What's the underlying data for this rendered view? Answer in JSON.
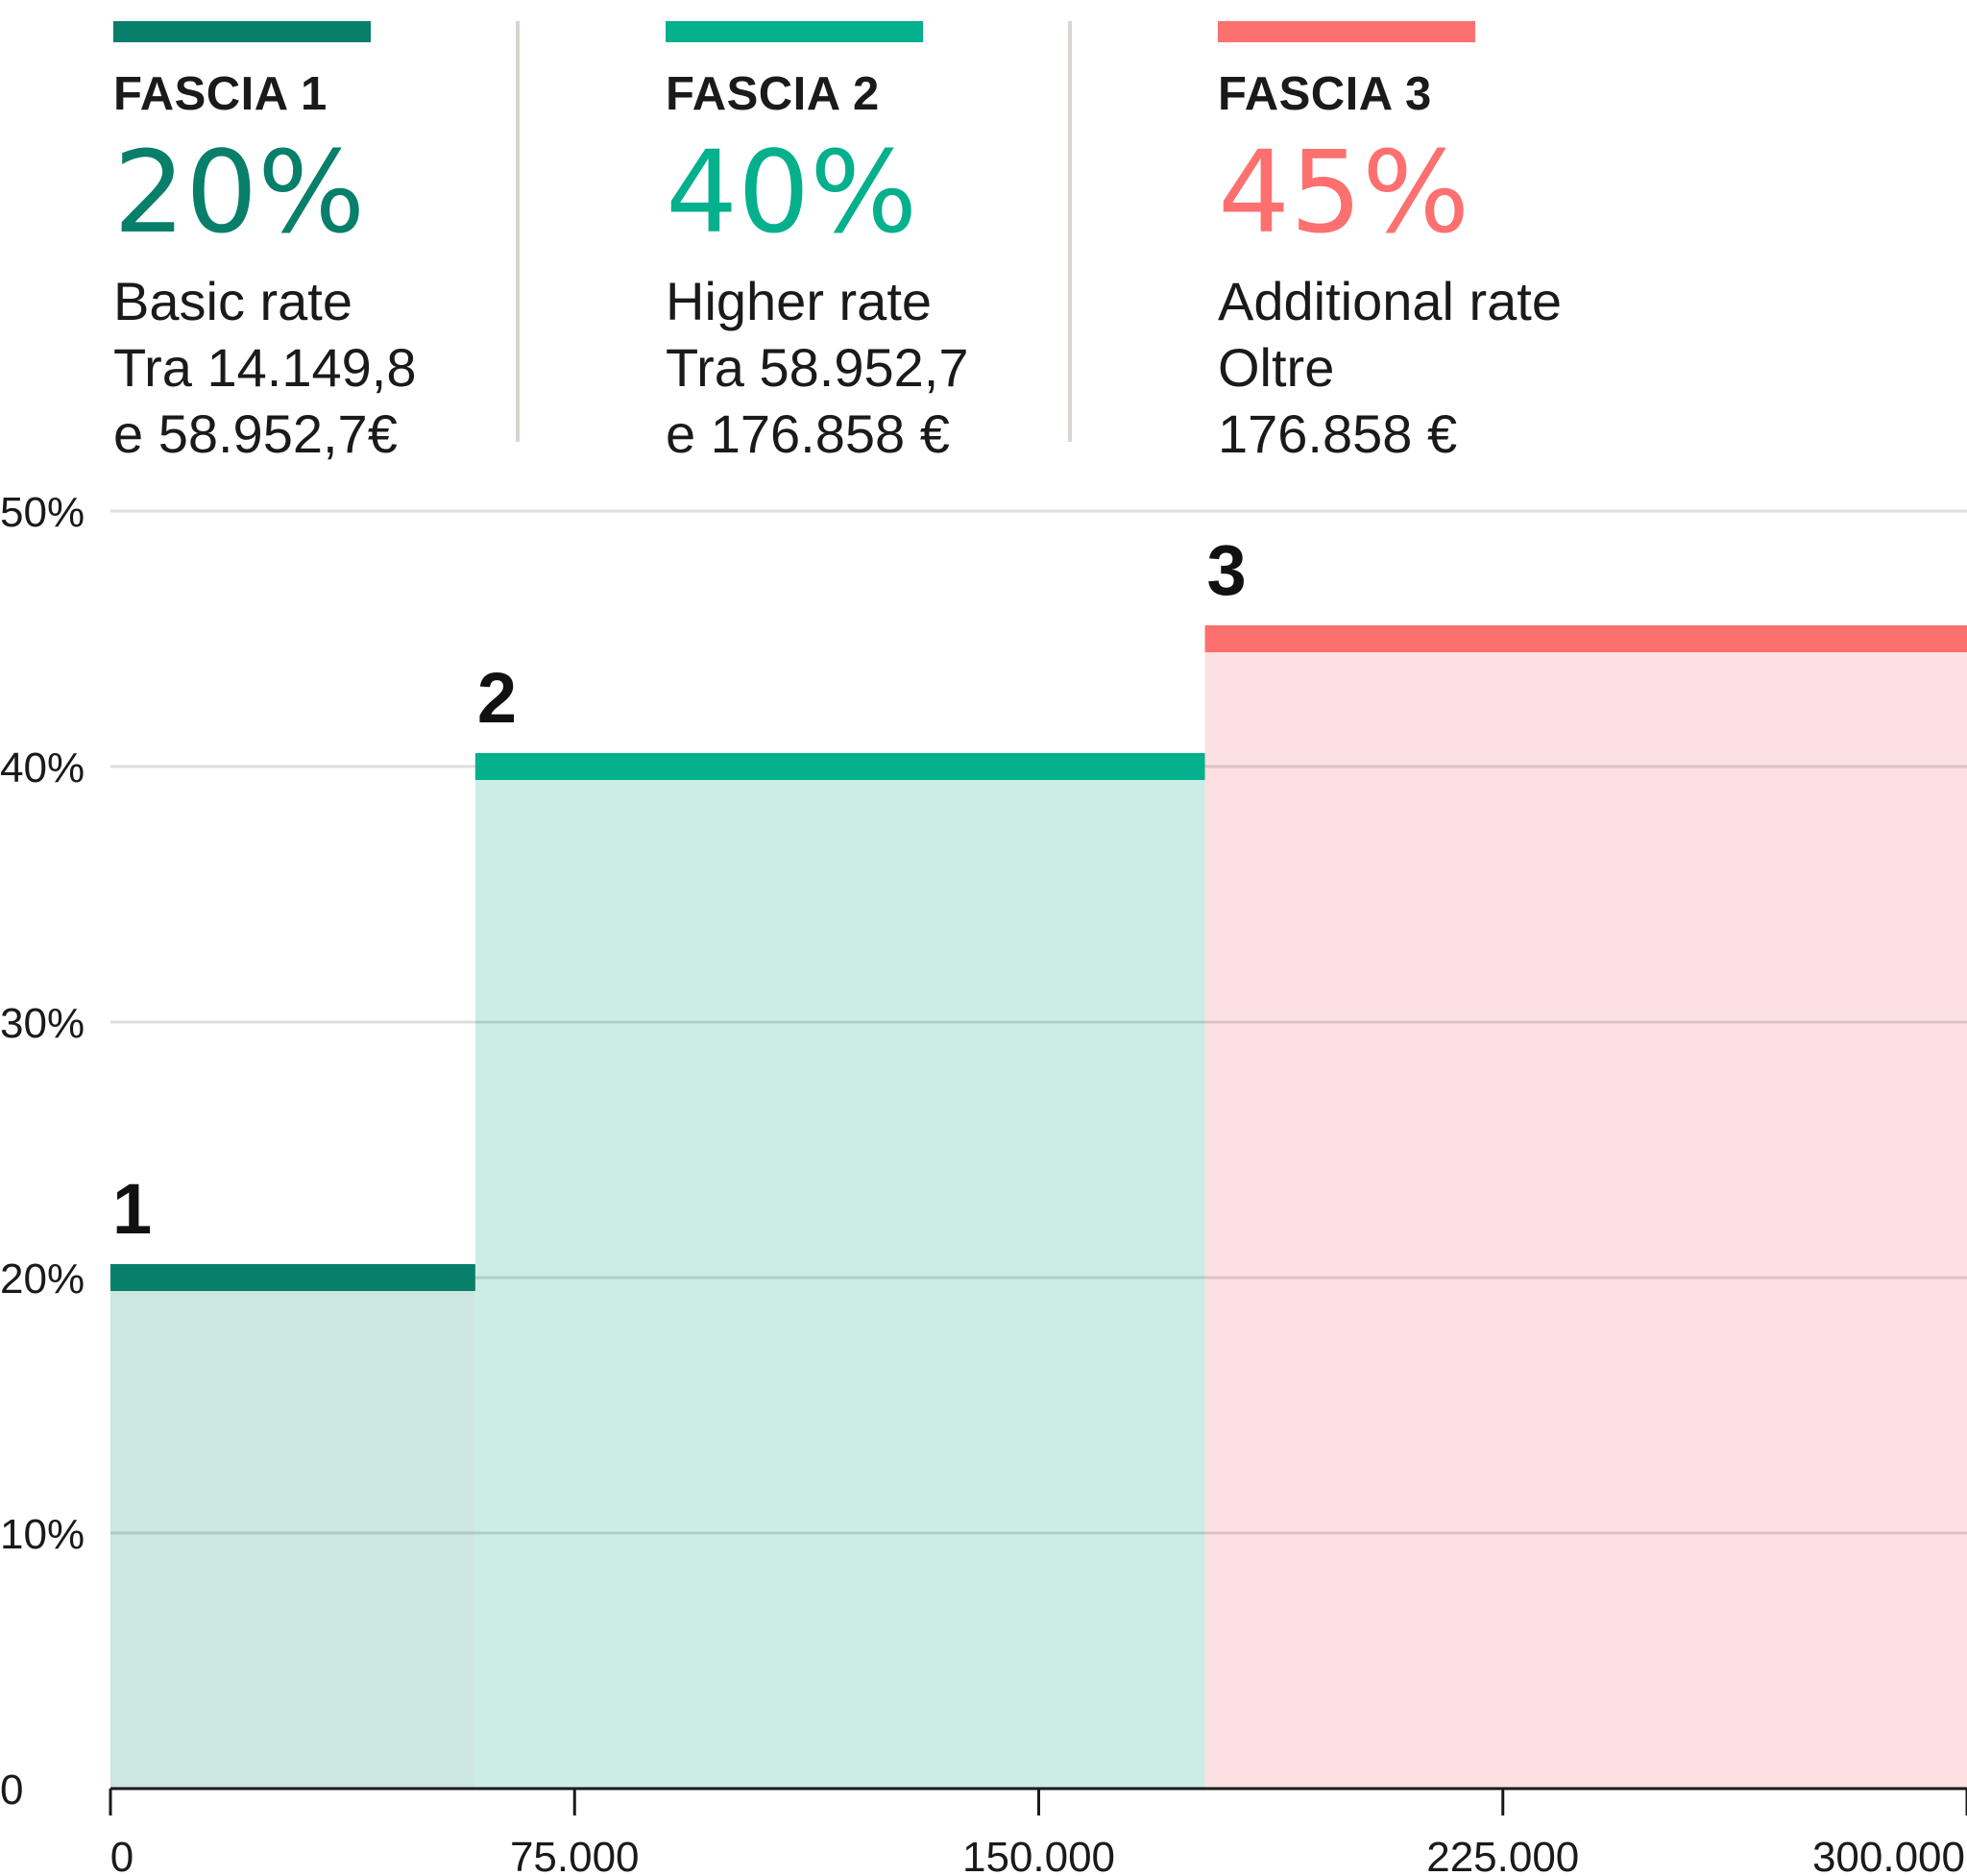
{
  "bands": [
    {
      "name": "FASCIA 1",
      "rate": "20%",
      "lines": [
        "Basic rate",
        "Tra 14.149,8",
        "e 58.952,7€"
      ],
      "color": "#087f6a"
    },
    {
      "name": "FASCIA 2",
      "rate": "40%",
      "lines": [
        "Higher rate",
        "Tra 58.952,7",
        "e 176.858 €"
      ],
      "color": "#05b08c"
    },
    {
      "name": "FASCIA 3",
      "rate": "45%",
      "lines": [
        "Additional rate",
        "Oltre",
        "176.858 €"
      ],
      "color": "#fd7070"
    }
  ],
  "chart_data": {
    "type": "area",
    "step": true,
    "xlim": [
      0,
      300000
    ],
    "ylim": [
      0,
      50
    ],
    "x_ticks": [
      0,
      75000,
      150000,
      225000,
      300000
    ],
    "x_tick_labels": [
      "0",
      "75.000",
      "150.000",
      "225.000",
      "300.000"
    ],
    "y_ticks": [
      0,
      10,
      20,
      30,
      40,
      50
    ],
    "y_tick_labels": [
      "0",
      "10%",
      "20%",
      "30%",
      "40%",
      "50%"
    ],
    "grid": true,
    "series": [
      {
        "label": "1",
        "x_start": 0,
        "x_end": 58952.7,
        "value": 20,
        "color": "#087f6a",
        "fill": "#cce6e0"
      },
      {
        "label": "2",
        "x_start": 58952.7,
        "x_end": 176858,
        "value": 40,
        "color": "#05b08c",
        "fill": "#cbede5"
      },
      {
        "label": "3",
        "x_start": 176858,
        "x_end": 300000,
        "value": 45,
        "color": "#fd7070",
        "fill": "#fde0e1"
      }
    ]
  }
}
